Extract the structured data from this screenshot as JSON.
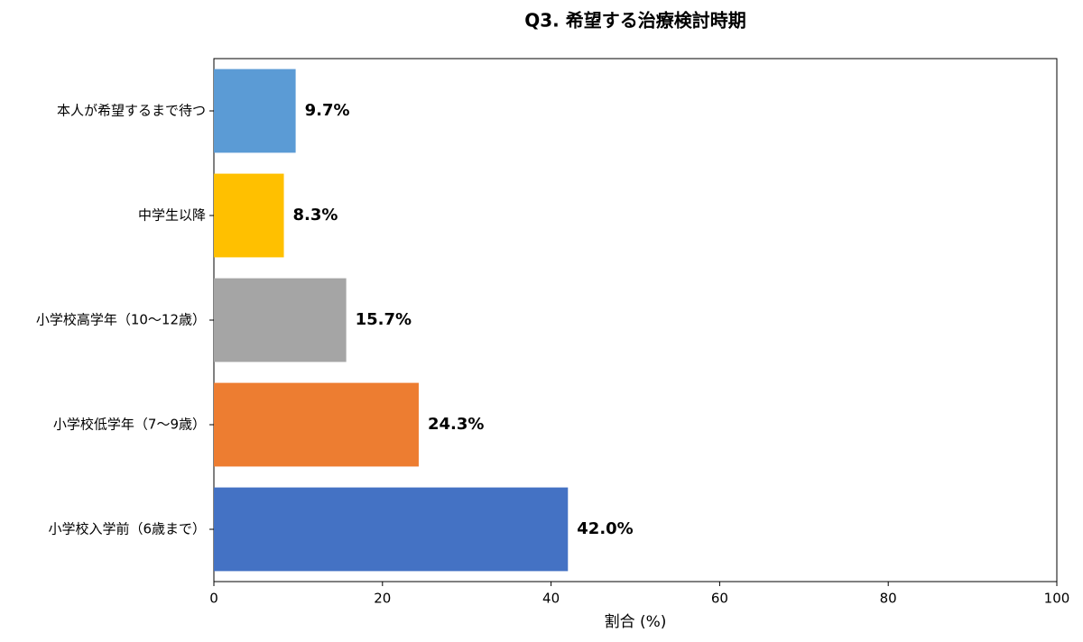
{
  "chart_data": {
    "type": "bar",
    "orientation": "horizontal",
    "title": "Q3. 希望する治療検討時期",
    "categories": [
      "小学校入学前（6歳まで）",
      "小学校低学年（7〜9歳）",
      "小学校高学年（10〜12歳）",
      "中学生以降",
      "本人が希望するまで待つ"
    ],
    "values": [
      42.0,
      24.3,
      15.7,
      8.3,
      9.7
    ],
    "value_labels": [
      "42.0%",
      "24.3%",
      "15.7%",
      "8.3%",
      "9.7%"
    ],
    "colors": [
      "#4472c4",
      "#ed7d31",
      "#a5a5a5",
      "#ffc000",
      "#5b9bd5"
    ],
    "xlabel": "割合 (%)",
    "xlim": [
      0,
      100
    ],
    "xticks": [
      0,
      20,
      40,
      60,
      80,
      100
    ]
  }
}
